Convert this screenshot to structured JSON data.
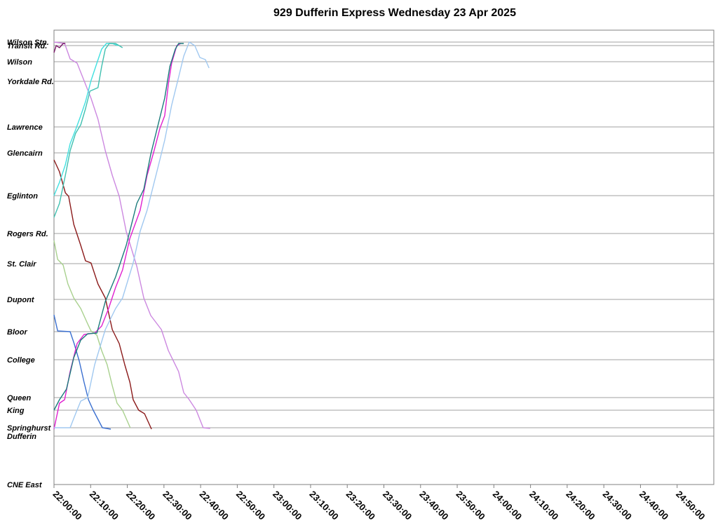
{
  "chart_data": {
    "type": "line",
    "title": "929 Dufferin Express Wednesday 23 Apr 2025",
    "xlim": [
      0,
      180
    ],
    "xticks": [
      {
        "value": 0,
        "label": "22:00:00"
      },
      {
        "value": 10,
        "label": "22:10:00"
      },
      {
        "value": 20,
        "label": "22:20:00"
      },
      {
        "value": 30,
        "label": "22:30:00"
      },
      {
        "value": 40,
        "label": "22:40:00"
      },
      {
        "value": 50,
        "label": "22:50:00"
      },
      {
        "value": 60,
        "label": "23:00:00"
      },
      {
        "value": 70,
        "label": "23:10:00"
      },
      {
        "value": 80,
        "label": "23:20:00"
      },
      {
        "value": 90,
        "label": "23:30:00"
      },
      {
        "value": 100,
        "label": "23:40:00"
      },
      {
        "value": 110,
        "label": "23:50:00"
      },
      {
        "value": 120,
        "label": "24:00:00"
      },
      {
        "value": 130,
        "label": "24:10:00"
      },
      {
        "value": 140,
        "label": "24:20:00"
      },
      {
        "value": 150,
        "label": "24:30:00"
      },
      {
        "value": 160,
        "label": "24:40:00"
      },
      {
        "value": 170,
        "label": "24:50:00"
      }
    ],
    "ylim": [
      0,
      64.8
    ],
    "yticks": [
      {
        "value": 0,
        "label": "CNE East"
      },
      {
        "value": 6.9,
        "label": "Dufferin"
      },
      {
        "value": 8.1,
        "label": "Springhurst"
      },
      {
        "value": 10.6,
        "label": "King"
      },
      {
        "value": 12.4,
        "label": "Queen"
      },
      {
        "value": 17.8,
        "label": "College"
      },
      {
        "value": 21.8,
        "label": "Bloor"
      },
      {
        "value": 26.4,
        "label": "Dupont"
      },
      {
        "value": 31.5,
        "label": "St. Clair"
      },
      {
        "value": 35.8,
        "label": "Rogers Rd."
      },
      {
        "value": 41.2,
        "label": "Eglinton"
      },
      {
        "value": 47.3,
        "label": "Glencairn"
      },
      {
        "value": 51,
        "label": "Lawrence"
      },
      {
        "value": 57.5,
        "label": "Yorkdale Rd."
      },
      {
        "value": 60.3,
        "label": "Wilson"
      },
      {
        "value": 62.6,
        "label": "Transit Rd."
      },
      {
        "value": 63.1,
        "label": "Wilson Stn."
      }
    ],
    "grid": true,
    "series": [
      {
        "color": "#3a6fd0",
        "x": [
          0,
          1,
          4.4,
          5.5,
          6.9,
          8.2,
          9.4,
          10.7,
          12,
          13.2,
          15.5
        ],
        "values": [
          24.2,
          21.9,
          21.8,
          20.1,
          17.6,
          14.6,
          12.1,
          10.6,
          9.3,
          8.1,
          7.9
        ]
      },
      {
        "color": "#a8d08d",
        "x": [
          0,
          1,
          2.5,
          3.8,
          5.4,
          7.3,
          9.2,
          10.1,
          11.7,
          13,
          14.5,
          15.9,
          17.2,
          18.7,
          20.8
        ],
        "values": [
          34.8,
          32.1,
          31.3,
          28.6,
          26.6,
          25.1,
          22.9,
          21.9,
          21.3,
          19.1,
          17.1,
          14.1,
          11.6,
          10.6,
          8.1
        ]
      },
      {
        "color": "#8b1a1a",
        "x": [
          0,
          1.5,
          3.1,
          4,
          5.4,
          7.3,
          8.6,
          10.1,
          12,
          14,
          15.9,
          17.8,
          19.3,
          20.7,
          21.6,
          23.1,
          24.7,
          26.6
        ],
        "values": [
          46.3,
          44.6,
          41.6,
          41.1,
          37.1,
          34.1,
          31.9,
          31.6,
          28.6,
          26.6,
          22.1,
          20.1,
          17.1,
          14.6,
          12.1,
          10.6,
          10.1,
          7.9
        ]
      },
      {
        "color": "#cc88e0",
        "x": [
          0,
          2.9,
          4.4,
          6.3,
          8.2,
          10.1,
          12,
          14,
          15.9,
          17.8,
          19.7,
          22.6,
          24.5,
          26.4,
          29.3,
          31.2,
          34,
          35.4,
          36.9,
          38.8,
          40.7,
          42.6
        ],
        "values": [
          63.1,
          62.9,
          60.7,
          60.1,
          57.6,
          55.1,
          52.1,
          47.6,
          44.1,
          41.1,
          36.1,
          31.1,
          26.6,
          24.1,
          22.1,
          19.1,
          16.1,
          13.1,
          12.1,
          10.6,
          8.1,
          8
        ]
      },
      {
        "color": "#e020d0",
        "x": [
          0,
          1.5,
          2.9,
          4.4,
          6.3,
          8.2,
          11.1,
          13,
          14.9,
          16.8,
          18.7,
          20.7,
          23.5,
          25.4,
          27.3,
          28.9,
          30.2,
          31.2,
          32.1,
          33.5,
          34.6
        ],
        "values": [
          7.9,
          11.6,
          12.1,
          16.1,
          20.1,
          21.4,
          21.6,
          22.6,
          25.1,
          28.1,
          30.6,
          35.1,
          39.1,
          44.1,
          47.6,
          50.8,
          52.6,
          57.1,
          60.1,
          62.6,
          62.9
        ]
      },
      {
        "color": "#1a7b7b",
        "x": [
          0,
          1.5,
          3.4,
          5.4,
          7.3,
          9.2,
          11.7,
          14,
          16.8,
          19.7,
          22.6,
          24.5,
          26.4,
          28.3,
          30.2,
          31.6,
          33.1,
          34,
          35.4
        ],
        "values": [
          10.6,
          12.1,
          13.6,
          18.1,
          20.6,
          21.5,
          21.6,
          26.1,
          29.6,
          34.1,
          40.1,
          42.1,
          47.1,
          51.1,
          55.1,
          59.6,
          62.1,
          62.9,
          62.9
        ]
      },
      {
        "color": "#a0c8f0",
        "x": [
          0,
          4.4,
          5.9,
          7.3,
          9.2,
          11.1,
          14,
          16.8,
          18.7,
          21.6,
          23.5,
          25.4,
          28.3,
          30.2,
          32.1,
          34,
          35.4,
          36.9,
          38.4,
          39.8,
          41.3,
          42.3
        ],
        "values": [
          8.1,
          8.1,
          10.1,
          11.9,
          12.4,
          17.1,
          22.1,
          25.1,
          26.6,
          31.6,
          36.1,
          39.1,
          45.1,
          49.1,
          54.1,
          58.1,
          61.1,
          63.1,
          62.6,
          60.9,
          60.6,
          59.4
        ]
      },
      {
        "color": "#40e0e0",
        "x": [
          0,
          1.5,
          3.1,
          4.4,
          5.9,
          7.3,
          8.6,
          10.1,
          11.7,
          13,
          14.3,
          15.9,
          17.4
        ],
        "values": [
          41.2,
          43.1,
          45.6,
          48.6,
          50.6,
          52.6,
          54.6,
          57.6,
          60.1,
          62.1,
          62.9,
          62.9,
          62.6
        ]
      },
      {
        "color": "#40c0b0",
        "x": [
          0,
          1.5,
          3.1,
          4.4,
          5.9,
          7.3,
          8.6,
          9.8,
          12,
          13,
          14,
          15.1,
          16.8,
          18.7
        ],
        "values": [
          38.1,
          40.1,
          44.1,
          47.6,
          50.1,
          51.3,
          53.6,
          56.1,
          56.6,
          59.6,
          62.1,
          62.9,
          62.9,
          62.3
        ]
      },
      {
        "color": "#7a1a6a",
        "x": [
          0,
          0.6,
          1.5,
          2.5,
          3.1
        ],
        "values": [
          61.6,
          62.6,
          62.3,
          62.9,
          62.9
        ]
      }
    ]
  }
}
